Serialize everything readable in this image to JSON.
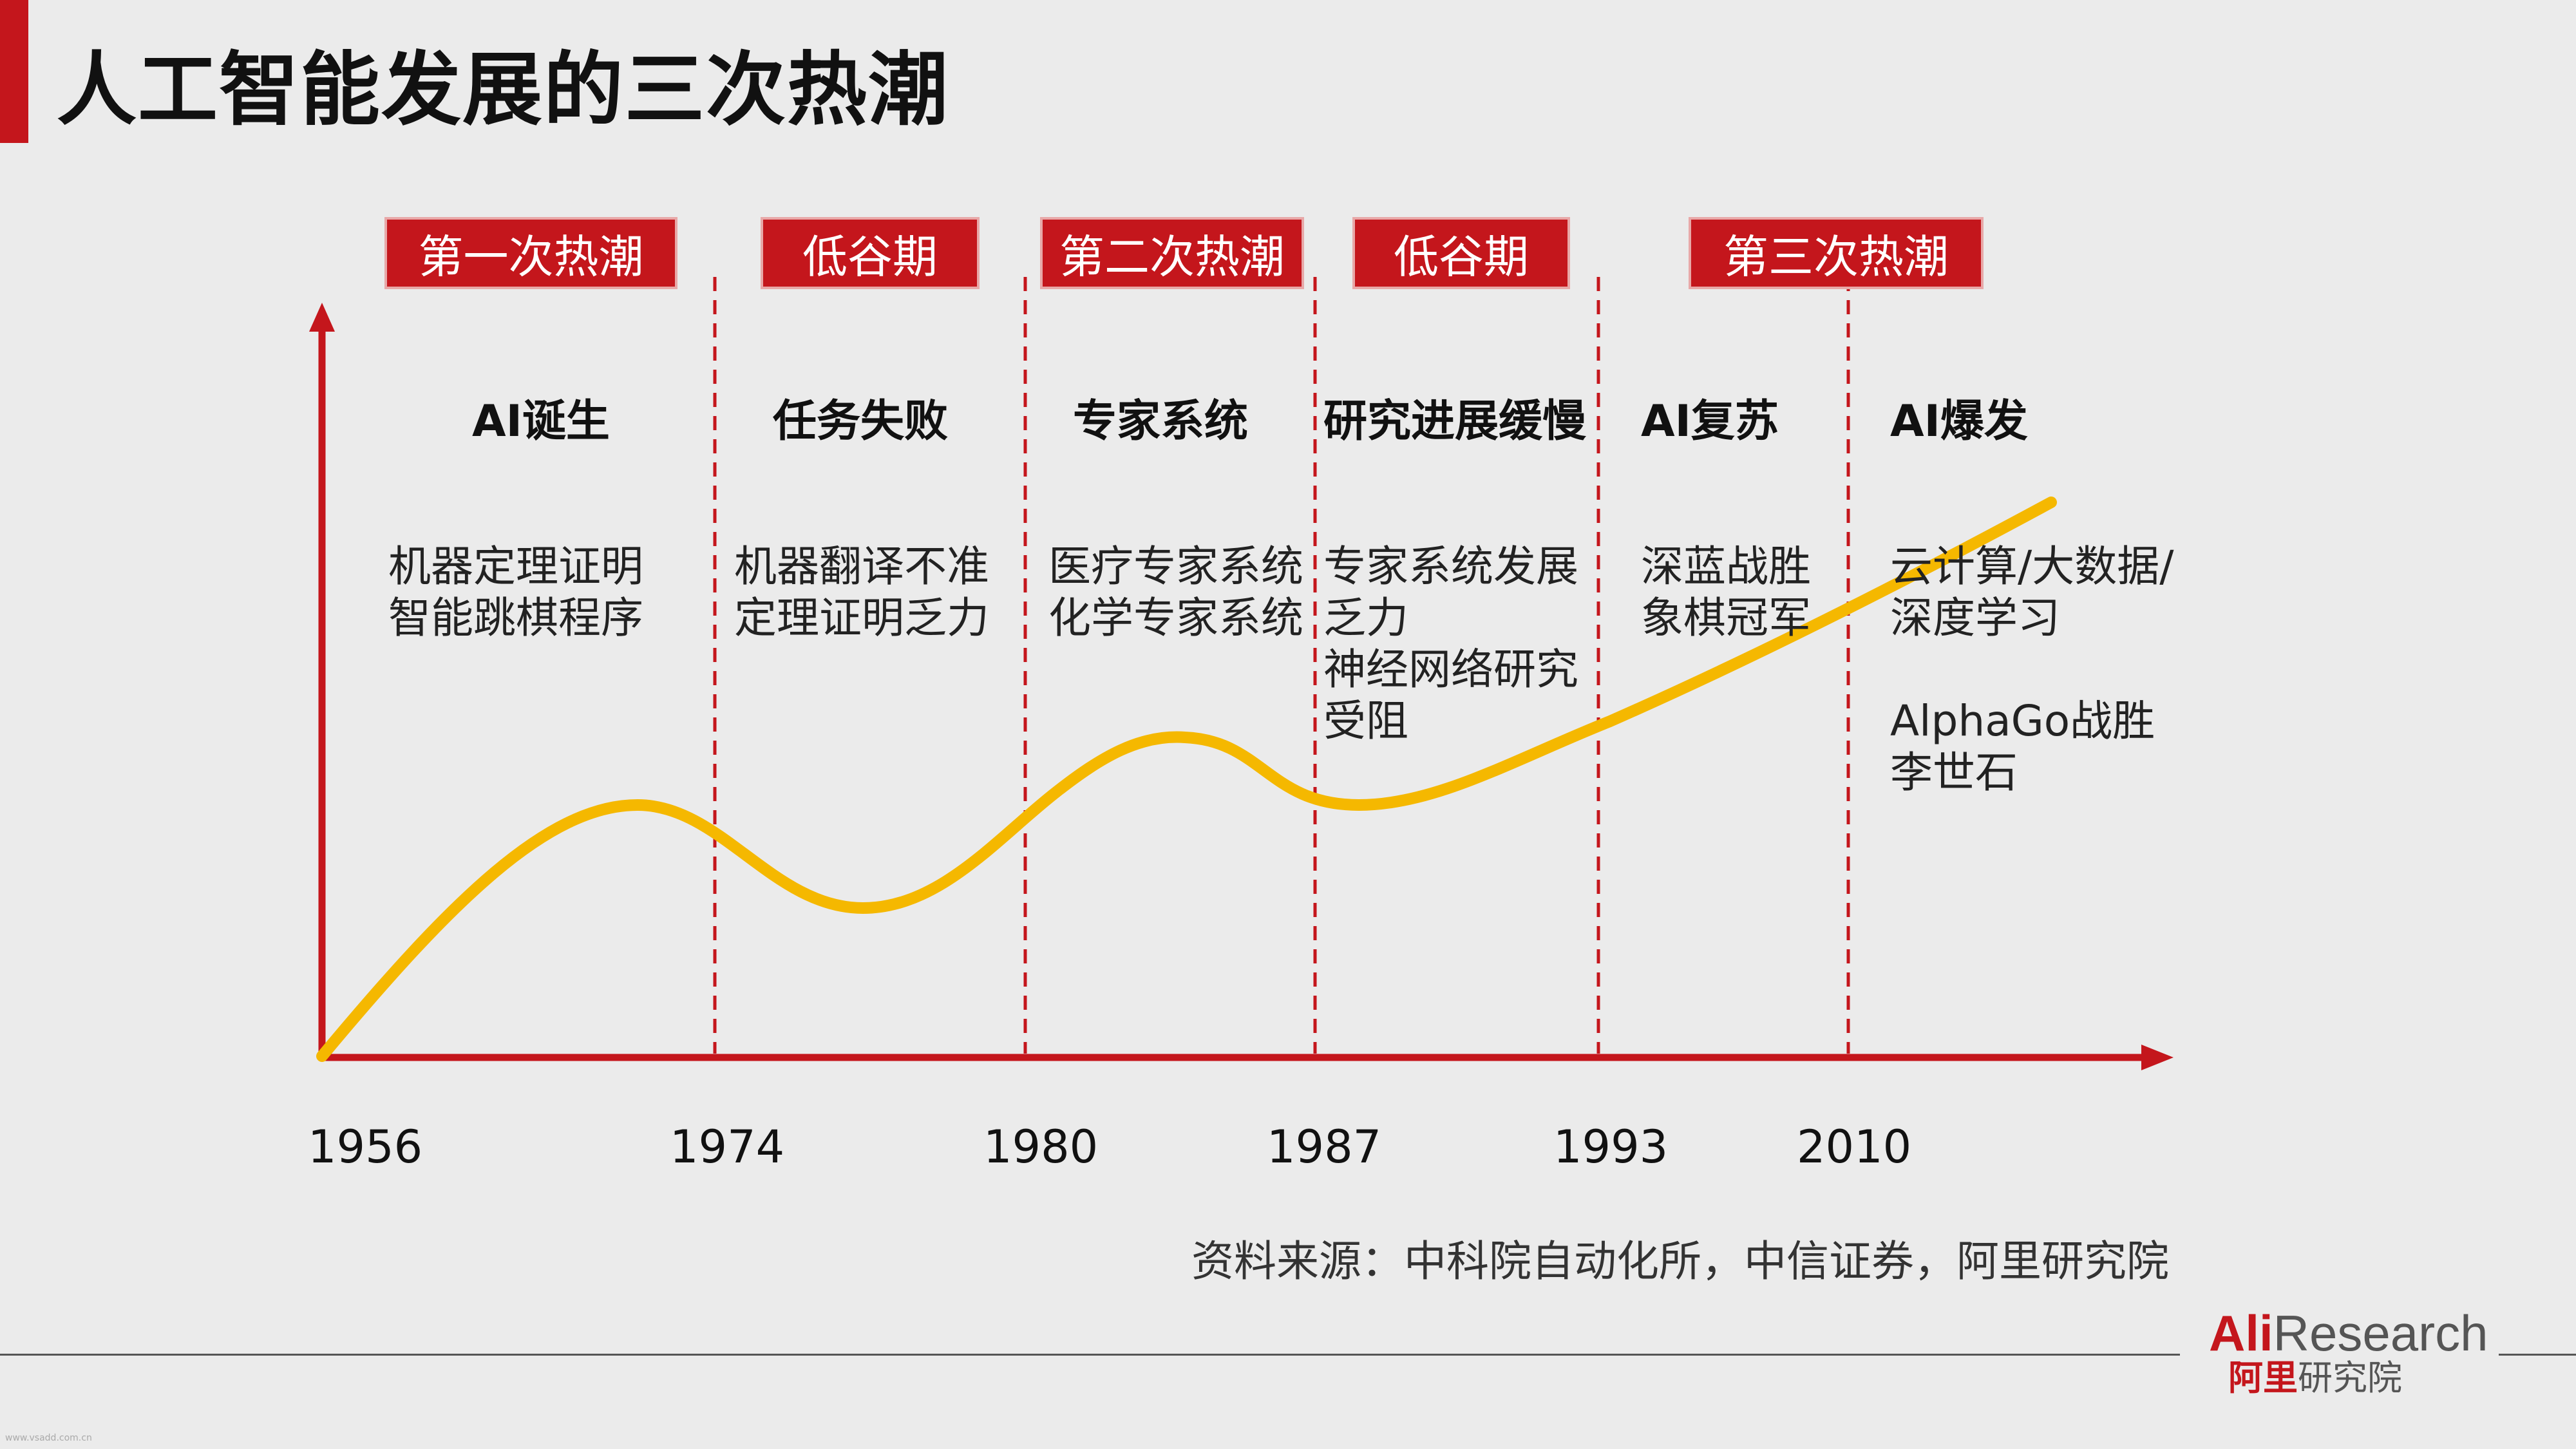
{
  "title": "人工智能发展的三次热潮",
  "colors": {
    "accent": "#c4161c",
    "curve": "#f5b800"
  },
  "phases": [
    {
      "tag": "第一次热潮",
      "heading": "AI诞生",
      "desc": [
        "机器定理证明",
        "智能跳棋程序"
      ]
    },
    {
      "tag": "低谷期",
      "heading": "任务失败",
      "desc": [
        "机器翻译不准",
        "定理证明乏力"
      ]
    },
    {
      "tag": "第二次热潮",
      "heading": "专家系统",
      "desc": [
        "医疗专家系统",
        "化学专家系统"
      ]
    },
    {
      "tag": "低谷期",
      "heading": "研究进展缓慢",
      "desc": [
        "专家系统发展",
        "乏力",
        "神经网络研究",
        "受阻"
      ]
    },
    {
      "tag": "",
      "heading": "AI复苏",
      "desc": [
        "深蓝战胜",
        "象棋冠军"
      ]
    },
    {
      "tag": "第三次热潮",
      "heading": "AI爆发",
      "desc": [
        "云计算/大数据/",
        "深度学习",
        "",
        "AlphaGo战胜",
        "李世石"
      ]
    }
  ],
  "years": [
    "1956",
    "1974",
    "1980",
    "1987",
    "1993",
    "2010"
  ],
  "source": "资料来源：中科院自动化所，中信证券，阿里研究院",
  "logo": {
    "ali": "Ali",
    "research": "Research",
    "cn_red": "阿里",
    "cn_gray": "研究院"
  },
  "watermark": "www.vsadd.com.cn"
}
